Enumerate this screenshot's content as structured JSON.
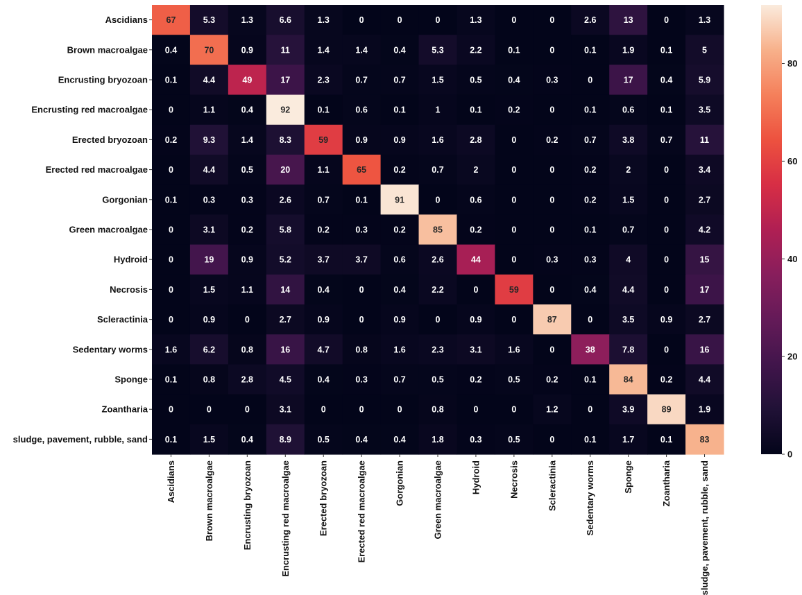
{
  "chart_data": {
    "type": "heatmap",
    "title": "",
    "xlabel": "",
    "ylabel": "",
    "row_labels": [
      "Ascidians",
      "Brown macroalgae",
      "Encrusting bryozoan",
      "Encrusting red macroalgae",
      "Erected bryozoan",
      "Erected red macroalgae",
      "Gorgonian",
      "Green macroalgae",
      "Hydroid",
      "Necrosis",
      "Scleractinia",
      "Sedentary worms",
      "Sponge",
      "Zoantharia",
      "sludge, pavement, rubble, sand"
    ],
    "col_labels": [
      "Ascidians",
      "Brown macroalgae",
      "Encrusting bryozoan",
      "Encrusting red macroalgae",
      "Erected bryozoan",
      "Erected red macroalgae",
      "Gorgonian",
      "Green macroalgae",
      "Hydroid",
      "Necrosis",
      "Scleractinia",
      "Sedentary worms",
      "Sponge",
      "Zoantharia",
      "sludge, pavement, rubble, sand"
    ],
    "values": [
      [
        67,
        5.3,
        1.3,
        6.6,
        1.3,
        0,
        0,
        0,
        1.3,
        0,
        0,
        2.6,
        13,
        0,
        1.3
      ],
      [
        0.4,
        70,
        0.9,
        11,
        1.4,
        1.4,
        0.4,
        5.3,
        2.2,
        0.1,
        0,
        0.1,
        1.9,
        0.1,
        5
      ],
      [
        0.1,
        4.4,
        49,
        17,
        2.3,
        0.7,
        0.7,
        1.5,
        0.5,
        0.4,
        0.3,
        0,
        17,
        0.4,
        5.9
      ],
      [
        0,
        1.1,
        0.4,
        92,
        0.1,
        0.6,
        0.1,
        1,
        0.1,
        0.2,
        0,
        0.1,
        0.6,
        0.1,
        3.5
      ],
      [
        0.2,
        9.3,
        1.4,
        8.3,
        59,
        0.9,
        0.9,
        1.6,
        2.8,
        0,
        0.2,
        0.7,
        3.8,
        0.7,
        11
      ],
      [
        0,
        4.4,
        0.5,
        20,
        1.1,
        65,
        0.2,
        0.7,
        2,
        0,
        0,
        0.2,
        2,
        0,
        3.4
      ],
      [
        0.1,
        0.3,
        0.3,
        2.6,
        0.7,
        0.1,
        91,
        0,
        0.6,
        0,
        0,
        0.2,
        1.5,
        0,
        2.7
      ],
      [
        0,
        3.1,
        0.2,
        5.8,
        0.2,
        0.3,
        0.2,
        85,
        0.2,
        0,
        0,
        0.1,
        0.7,
        0,
        4.2
      ],
      [
        0,
        19,
        0.9,
        5.2,
        3.7,
        3.7,
        0.6,
        2.6,
        44,
        0,
        0.3,
        0.3,
        4,
        0,
        15
      ],
      [
        0,
        1.5,
        1.1,
        14,
        0.4,
        0,
        0.4,
        2.2,
        0,
        59,
        0,
        0.4,
        4.4,
        0,
        17
      ],
      [
        0,
        0.9,
        0,
        2.7,
        0.9,
        0,
        0.9,
        0,
        0.9,
        0,
        87,
        0,
        3.5,
        0.9,
        2.7
      ],
      [
        1.6,
        6.2,
        0.8,
        16,
        4.7,
        0.8,
        1.6,
        2.3,
        3.1,
        1.6,
        0,
        38,
        7.8,
        0,
        16
      ],
      [
        0.1,
        0.8,
        2.8,
        4.5,
        0.4,
        0.3,
        0.7,
        0.5,
        0.2,
        0.5,
        0.2,
        0.1,
        84,
        0.2,
        4.4
      ],
      [
        0,
        0,
        0,
        3.1,
        0,
        0,
        0,
        0.8,
        0,
        0,
        1.2,
        0,
        3.9,
        89,
        1.9
      ],
      [
        0.1,
        1.5,
        0.4,
        8.9,
        0.5,
        0.4,
        0.4,
        1.8,
        0.3,
        0.5,
        0,
        0.1,
        1.7,
        0.1,
        83
      ]
    ],
    "colorbar": {
      "min": 0,
      "max": 92,
      "ticks": [
        0,
        20,
        40,
        60,
        80
      ],
      "colormap": "rocket"
    },
    "grid": false,
    "legend": "colorbar-right"
  }
}
